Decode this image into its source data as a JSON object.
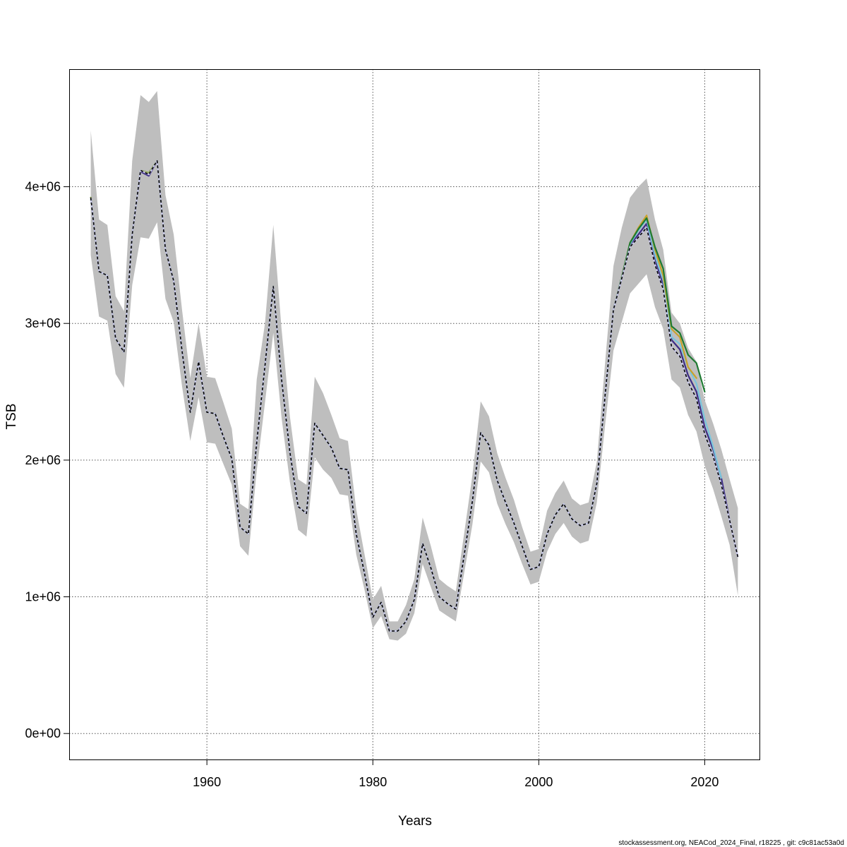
{
  "chart_data": {
    "type": "line",
    "title": "",
    "xlabel": "Years",
    "ylabel": "TSB",
    "xlim": [
      1943.4,
      2026.6
    ],
    "ylim": [
      -190000,
      4860000
    ],
    "x_ticks": [
      1960,
      1980,
      2000,
      2020
    ],
    "x_tick_labels": [
      "1960",
      "1980",
      "2000",
      "2020"
    ],
    "y_ticks": [
      0,
      1000000,
      2000000,
      3000000,
      4000000
    ],
    "y_tick_labels": [
      "0e+00",
      "1e+06",
      "2e+06",
      "3e+06",
      "4e+06"
    ],
    "grid": true,
    "footer": "stockassessment.org, NEACod_2024_Final, r18225 , git: c9c81ac53a0d",
    "band_color": "#bebebe",
    "base_years": [
      1946,
      1947,
      1948,
      1949,
      1950,
      1951,
      1952,
      1953,
      1954,
      1955,
      1956,
      1957,
      1958,
      1959,
      1960,
      1961,
      1962,
      1963,
      1964,
      1965,
      1966,
      1967,
      1968,
      1969,
      1970,
      1971,
      1972,
      1973,
      1974,
      1975,
      1976,
      1977,
      1978,
      1979,
      1980,
      1981,
      1982,
      1983,
      1984,
      1985,
      1986,
      1987,
      1988,
      1989,
      1990,
      1991,
      1992,
      1993,
      1994,
      1995,
      1996,
      1997,
      1998,
      1999,
      2000,
      2001,
      2002,
      2003,
      2004,
      2005,
      2006,
      2007,
      2008,
      2009,
      2010,
      2011,
      2012,
      2013,
      2014,
      2015,
      2016,
      2017,
      2018,
      2019,
      2020,
      2021,
      2022,
      2023,
      2024
    ],
    "estimate": [
      3920000,
      3380000,
      3350000,
      2890000,
      2790000,
      3650000,
      4120000,
      4090000,
      4190000,
      3540000,
      3310000,
      2800000,
      2350000,
      2720000,
      2350000,
      2340000,
      2170000,
      2010000,
      1510000,
      1460000,
      2130000,
      2690000,
      3270000,
      2590000,
      2060000,
      1660000,
      1610000,
      2270000,
      2180000,
      2090000,
      1940000,
      1930000,
      1460000,
      1170000,
      850000,
      960000,
      750000,
      750000,
      820000,
      980000,
      1390000,
      1210000,
      1000000,
      950000,
      910000,
      1300000,
      1700000,
      2200000,
      2110000,
      1850000,
      1690000,
      1540000,
      1370000,
      1200000,
      1220000,
      1460000,
      1600000,
      1680000,
      1570000,
      1520000,
      1540000,
      1830000,
      2480000,
      3100000,
      3330000,
      3560000,
      3630000,
      3700000,
      3430000,
      3250000,
      2830000,
      2760000,
      2570000,
      2450000,
      2190000,
      2030000,
      1820000,
      1560000,
      1290000
    ],
    "lower": [
      3500000,
      3050000,
      3020000,
      2630000,
      2530000,
      3280000,
      3630000,
      3620000,
      3740000,
      3180000,
      3010000,
      2540000,
      2140000,
      2460000,
      2130000,
      2120000,
      1970000,
      1820000,
      1370000,
      1300000,
      1920000,
      2420000,
      2930000,
      2310000,
      1840000,
      1490000,
      1440000,
      2020000,
      1930000,
      1870000,
      1750000,
      1740000,
      1310000,
      1050000,
      770000,
      860000,
      690000,
      680000,
      730000,
      880000,
      1240000,
      1070000,
      900000,
      860000,
      820000,
      1170000,
      1530000,
      1990000,
      1910000,
      1680000,
      1530000,
      1400000,
      1240000,
      1090000,
      1110000,
      1330000,
      1460000,
      1540000,
      1440000,
      1390000,
      1410000,
      1690000,
      2260000,
      2800000,
      3010000,
      3220000,
      3290000,
      3360000,
      3120000,
      2960000,
      2590000,
      2530000,
      2330000,
      2210000,
      1960000,
      1790000,
      1590000,
      1380000,
      1010000
    ],
    "upper": [
      4410000,
      3760000,
      3720000,
      3200000,
      3090000,
      4190000,
      4670000,
      4620000,
      4700000,
      3940000,
      3650000,
      3100000,
      2600000,
      3000000,
      2610000,
      2600000,
      2420000,
      2230000,
      1680000,
      1640000,
      2590000,
      3000000,
      3720000,
      2960000,
      2320000,
      1860000,
      1820000,
      2610000,
      2490000,
      2330000,
      2160000,
      2140000,
      1640000,
      1310000,
      980000,
      1080000,
      820000,
      820000,
      940000,
      1130000,
      1580000,
      1370000,
      1130000,
      1080000,
      1040000,
      1460000,
      1890000,
      2430000,
      2320000,
      2050000,
      1870000,
      1710000,
      1510000,
      1330000,
      1350000,
      1630000,
      1760000,
      1850000,
      1720000,
      1670000,
      1690000,
      1990000,
      2720000,
      3420000,
      3700000,
      3920000,
      4000000,
      4060000,
      3760000,
      3540000,
      3080000,
      3000000,
      2820000,
      2720000,
      2440000,
      2270000,
      2080000,
      1860000,
      1650000
    ],
    "series": [
      {
        "color": "#3d2d86",
        "x": [
          1946,
          1947,
          1948,
          1949,
          1950,
          1951,
          1952,
          1953,
          1954,
          1955,
          1956,
          1957,
          1958,
          1959,
          1960,
          1961,
          1962,
          1963,
          1964,
          1965,
          1966,
          1967,
          1968,
          1969,
          1970,
          1971,
          1972,
          1973,
          1974,
          1975,
          1976,
          1977,
          1978,
          1979,
          1980,
          1981,
          1982,
          1983,
          1984,
          1985,
          1986,
          1987,
          1988,
          1989,
          1990,
          1991,
          1992,
          1993,
          1994,
          1995,
          1996,
          1997,
          1998,
          1999,
          2000,
          2001,
          2002,
          2003,
          2004,
          2005,
          2006,
          2007,
          2008,
          2009,
          2010,
          2011,
          2012,
          2013,
          2014,
          2015,
          2016,
          2017,
          2018,
          2019,
          2020,
          2021,
          2022,
          2023
        ],
        "values": [
          3920000,
          3380000,
          3350000,
          2890000,
          2790000,
          3650000,
          4110000,
          4080000,
          4190000,
          3540000,
          3310000,
          2800000,
          2350000,
          2720000,
          2350000,
          2340000,
          2170000,
          2010000,
          1510000,
          1460000,
          2130000,
          2690000,
          3270000,
          2590000,
          2060000,
          1660000,
          1610000,
          2270000,
          2180000,
          2090000,
          1940000,
          1930000,
          1460000,
          1170000,
          850000,
          960000,
          750000,
          750000,
          820000,
          980000,
          1390000,
          1210000,
          1000000,
          950000,
          910000,
          1300000,
          1700000,
          2200000,
          2110000,
          1850000,
          1690000,
          1540000,
          1370000,
          1200000,
          1220000,
          1460000,
          1600000,
          1680000,
          1570000,
          1520000,
          1540000,
          1830000,
          2480000,
          3100000,
          3330000,
          3570000,
          3650000,
          3730000,
          3460000,
          3280000,
          2880000,
          2810000,
          2620000,
          2500000,
          2240000,
          2080000,
          1870000,
          1560000
        ]
      },
      {
        "color": "#79c5dd",
        "x": [
          2010,
          2011,
          2012,
          2013,
          2014,
          2015,
          2016,
          2017,
          2018,
          2019,
          2020,
          2021,
          2022
        ],
        "values": [
          3330000,
          3580000,
          3680000,
          3760000,
          3500000,
          3320000,
          2900000,
          2850000,
          2680000,
          2560000,
          2300000,
          2100000,
          1870000
        ]
      },
      {
        "color": "#c9a22b",
        "x": [
          2010,
          2011,
          2012,
          2013,
          2014,
          2015,
          2016,
          2017,
          2018,
          2019
        ],
        "values": [
          3340000,
          3590000,
          3700000,
          3790000,
          3540000,
          3350000,
          2960000,
          2900000,
          2680000,
          2600000
        ]
      },
      {
        "color": "#1f7a32",
        "x": [
          1946,
          1947,
          1948,
          1949,
          1950,
          1951,
          1952,
          1953,
          1954,
          1955,
          1956,
          1957,
          1958,
          1959,
          1960,
          1961,
          1962,
          1963,
          1964,
          1965,
          1966,
          1967,
          1968,
          1969,
          1970,
          1971,
          1972,
          1973,
          1974,
          1975,
          1976,
          1977,
          1978,
          1979,
          1980,
          1981,
          1982,
          1983,
          1984,
          1985,
          1986,
          1987,
          1988,
          1989,
          1990,
          1991,
          1992,
          1993,
          1994,
          1995,
          1996,
          1997,
          1998,
          1999,
          2000,
          2001,
          2002,
          2003,
          2004,
          2005,
          2006,
          2007,
          2008,
          2009,
          2010,
          2011,
          2012,
          2013,
          2014,
          2015,
          2016,
          2017,
          2018,
          2019,
          2020
        ],
        "values": [
          3920000,
          3380000,
          3350000,
          2890000,
          2790000,
          3650000,
          4120000,
          4100000,
          4190000,
          3540000,
          3310000,
          2800000,
          2350000,
          2720000,
          2350000,
          2340000,
          2170000,
          2010000,
          1510000,
          1460000,
          2130000,
          2690000,
          3270000,
          2590000,
          2060000,
          1660000,
          1610000,
          2270000,
          2180000,
          2090000,
          1940000,
          1930000,
          1460000,
          1170000,
          850000,
          960000,
          750000,
          750000,
          820000,
          980000,
          1390000,
          1210000,
          1000000,
          950000,
          910000,
          1300000,
          1700000,
          2200000,
          2110000,
          1850000,
          1690000,
          1540000,
          1370000,
          1200000,
          1220000,
          1460000,
          1600000,
          1680000,
          1570000,
          1520000,
          1540000,
          1830000,
          2480000,
          3100000,
          3340000,
          3590000,
          3690000,
          3770000,
          3560000,
          3400000,
          2980000,
          2930000,
          2770000,
          2710000,
          2500000
        ]
      },
      {
        "color": "#8fa83a",
        "x": [
          1946,
          1947,
          1948,
          1949,
          1950,
          1951,
          1952,
          1953,
          1954,
          1955,
          1956,
          1957,
          1958,
          1959,
          1960,
          1961,
          1962,
          1963,
          1964,
          1965,
          1966,
          1967,
          1968,
          1969,
          1970,
          1971,
          1972,
          1973,
          1974,
          1975,
          1976,
          1977,
          1978,
          1979,
          1980,
          1981,
          1982,
          1983,
          1984,
          1985,
          1986,
          1987,
          1988,
          1989,
          1990,
          1991,
          1992,
          1993,
          1994,
          1995,
          1996,
          1997,
          1998,
          1999,
          2000,
          2001,
          2002,
          2003,
          2004,
          2005,
          2006,
          2007,
          2008,
          2009
        ],
        "values": [
          3920000,
          3380000,
          3350000,
          2890000,
          2790000,
          3650000,
          4120000,
          4100000,
          4190000,
          3540000,
          3310000,
          2800000,
          2350000,
          2720000,
          2350000,
          2340000,
          2170000,
          2010000,
          1510000,
          1460000,
          2130000,
          2690000,
          3270000,
          2590000,
          2060000,
          1660000,
          1610000,
          2270000,
          2180000,
          2090000,
          1940000,
          1930000,
          1460000,
          1170000,
          850000,
          960000,
          750000,
          750000,
          820000,
          980000,
          1390000,
          1210000,
          1000000,
          950000,
          910000,
          1300000,
          1700000,
          2200000,
          2110000,
          1850000,
          1690000,
          1540000,
          1370000,
          1200000,
          1220000,
          1460000,
          1600000,
          1680000,
          1570000,
          1520000,
          1540000,
          1830000,
          2480000,
          3100000
        ]
      }
    ],
    "current_estimate_color": "#000000"
  }
}
